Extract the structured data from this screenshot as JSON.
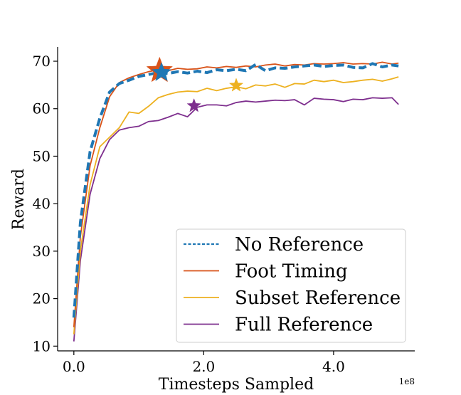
{
  "chart_data": {
    "type": "line",
    "title": "",
    "xlabel": "Timesteps Sampled",
    "ylabel": "Reward",
    "x_multiplier_label": "1e8",
    "xlim": [
      -0.25,
      5.25
    ],
    "ylim": [
      9,
      73
    ],
    "xticks": [
      0.0,
      2.0,
      4.0
    ],
    "xtick_labels": [
      "0.0",
      "2.0",
      "4.0"
    ],
    "yticks": [
      10,
      20,
      30,
      40,
      50,
      60,
      70
    ],
    "ytick_labels": [
      "10",
      "20",
      "30",
      "40",
      "50",
      "60",
      "70"
    ],
    "grid": false,
    "legend_position": "lower-right",
    "series": [
      {
        "name": "No Reference",
        "color": "#1f77b4",
        "style": "dashed",
        "x": [
          0.0,
          0.1,
          0.25,
          0.4,
          0.55,
          0.7,
          0.85,
          1.0,
          1.15,
          1.3,
          1.45,
          1.6,
          1.75,
          1.9,
          2.05,
          2.2,
          2.35,
          2.5,
          2.65,
          2.8,
          2.95,
          3.1,
          3.25,
          3.4,
          3.55,
          3.7,
          3.85,
          4.0,
          4.15,
          4.3,
          4.45,
          4.6,
          4.75,
          4.9,
          5.0
        ],
        "values": [
          16.0,
          36.0,
          51.0,
          58.0,
          63.5,
          65.3,
          66.0,
          66.8,
          67.2,
          67.6,
          67.4,
          67.8,
          67.5,
          67.9,
          67.6,
          68.2,
          68.0,
          68.3,
          68.0,
          69.3,
          68.0,
          68.6,
          68.5,
          68.8,
          69.0,
          69.2,
          68.9,
          69.1,
          69.2,
          68.7,
          68.6,
          69.5,
          68.8,
          69.2,
          69.0
        ],
        "best_marker": {
          "x": 1.35,
          "y": 67.6
        }
      },
      {
        "name": "Foot Timing",
        "color": "#d95319",
        "style": "solid",
        "x": [
          0.0,
          0.1,
          0.25,
          0.4,
          0.55,
          0.7,
          0.85,
          1.0,
          1.15,
          1.3,
          1.45,
          1.6,
          1.75,
          1.9,
          2.05,
          2.2,
          2.35,
          2.5,
          2.65,
          2.8,
          2.95,
          3.1,
          3.25,
          3.4,
          3.55,
          3.7,
          3.85,
          4.0,
          4.15,
          4.3,
          4.45,
          4.6,
          4.75,
          4.9,
          5.0
        ],
        "values": [
          14.0,
          33.0,
          48.0,
          56.0,
          62.5,
          65.5,
          66.5,
          67.2,
          67.8,
          68.2,
          68.0,
          68.5,
          68.3,
          68.4,
          68.8,
          68.6,
          68.9,
          68.7,
          69.0,
          68.8,
          69.2,
          69.4,
          69.0,
          69.3,
          69.2,
          69.5,
          69.4,
          69.5,
          69.7,
          69.4,
          69.5,
          69.4,
          69.8,
          69.4,
          69.6
        ],
        "best_marker": {
          "x": 1.32,
          "y": 68.0
        }
      },
      {
        "name": "Subset Reference",
        "color": "#edb120",
        "style": "solid",
        "x": [
          0.0,
          0.1,
          0.25,
          0.4,
          0.55,
          0.7,
          0.85,
          1.0,
          1.15,
          1.3,
          1.45,
          1.6,
          1.75,
          1.9,
          2.05,
          2.2,
          2.35,
          2.5,
          2.65,
          2.8,
          2.95,
          3.1,
          3.25,
          3.4,
          3.55,
          3.7,
          3.85,
          4.0,
          4.15,
          4.3,
          4.45,
          4.6,
          4.75,
          4.9,
          5.0
        ],
        "values": [
          12.5,
          30.0,
          44.0,
          52.0,
          54.0,
          56.0,
          59.3,
          59.0,
          60.5,
          62.3,
          63.0,
          63.5,
          63.7,
          63.6,
          64.3,
          63.8,
          64.3,
          64.6,
          64.2,
          65.0,
          64.8,
          65.2,
          64.5,
          65.3,
          65.2,
          66.0,
          65.7,
          66.0,
          65.5,
          65.7,
          66.0,
          66.2,
          65.8,
          66.3,
          66.7
        ],
        "best_marker": {
          "x": 2.5,
          "y": 64.9
        }
      },
      {
        "name": "Full Reference",
        "color": "#7e2f8e",
        "style": "solid",
        "x": [
          0.0,
          0.1,
          0.25,
          0.4,
          0.55,
          0.7,
          0.85,
          1.0,
          1.15,
          1.3,
          1.45,
          1.6,
          1.75,
          1.9,
          2.05,
          2.2,
          2.35,
          2.5,
          2.65,
          2.8,
          2.95,
          3.1,
          3.25,
          3.4,
          3.55,
          3.7,
          3.85,
          4.0,
          4.15,
          4.3,
          4.45,
          4.6,
          4.75,
          4.9,
          5.0
        ],
        "values": [
          11.0,
          28.0,
          42.0,
          49.5,
          53.5,
          55.5,
          56.0,
          56.3,
          57.3,
          57.5,
          58.2,
          59.0,
          58.3,
          60.3,
          60.8,
          60.8,
          60.6,
          61.3,
          61.6,
          61.4,
          61.6,
          61.8,
          61.7,
          61.9,
          60.8,
          62.2,
          62.0,
          61.9,
          61.5,
          62.0,
          61.9,
          62.3,
          62.2,
          62.3,
          60.9
        ],
        "best_marker": {
          "x": 1.85,
          "y": 60.6
        }
      }
    ]
  }
}
